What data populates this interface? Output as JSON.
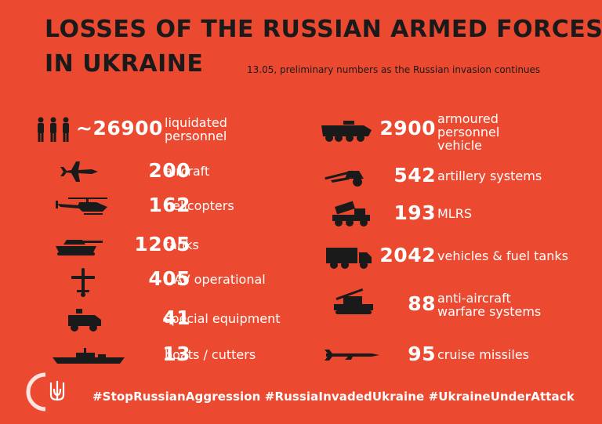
{
  "header": {
    "title_line1": "LOSSES OF THE RUSSIAN ARMED FORCES",
    "title_line2": "IN UKRAINE",
    "subtitle": "13.05, preliminary numbers as the Russian invasion continues"
  },
  "left_items": [
    {
      "icon": "soldiers-icon",
      "value": "~26900",
      "label_lines": [
        "liquidated",
        "personnel"
      ]
    },
    {
      "icon": "aircraft-icon",
      "value": "200",
      "label_lines": [
        "aircraft"
      ]
    },
    {
      "icon": "helicopter-icon",
      "value": "162",
      "label_lines": [
        "helicopters"
      ]
    },
    {
      "icon": "tank-icon",
      "value": "1205",
      "label_lines": [
        "tanks"
      ]
    },
    {
      "icon": "uav-icon",
      "value": "405",
      "label_lines": [
        "UAV operational"
      ]
    },
    {
      "icon": "special-vehicle-icon",
      "value": "41",
      "label_lines": [
        "special equipment"
      ]
    },
    {
      "icon": "warship-icon",
      "value": "13",
      "label_lines": [
        "boats / cutters"
      ]
    }
  ],
  "right_items": [
    {
      "icon": "apc-icon",
      "value": "2900",
      "label_lines": [
        "armoured",
        "personnel",
        "vehicle"
      ]
    },
    {
      "icon": "artillery-icon",
      "value": "542",
      "label_lines": [
        "artillery systems"
      ]
    },
    {
      "icon": "mlrs-icon",
      "value": "193",
      "label_lines": [
        "MLRS"
      ]
    },
    {
      "icon": "truck-icon",
      "value": "2042",
      "label_lines": [
        "vehicles & fuel tanks"
      ]
    },
    {
      "icon": "anti-aircraft-icon",
      "value": "88",
      "label_lines": [
        "anti-aircraft",
        "warfare systems"
      ]
    },
    {
      "icon": "cruise-missile-icon",
      "value": "95",
      "label_lines": [
        "cruise missiles"
      ]
    }
  ],
  "footer": {
    "hashtags": "#StopRussianAggression #RussiaInvadedUkraine #UkraineUnderAttack"
  },
  "colors": {
    "background": "#ec4a30",
    "title": "#1a1a1a",
    "text": "#ffffff",
    "icons": "#1a1a1a"
  }
}
